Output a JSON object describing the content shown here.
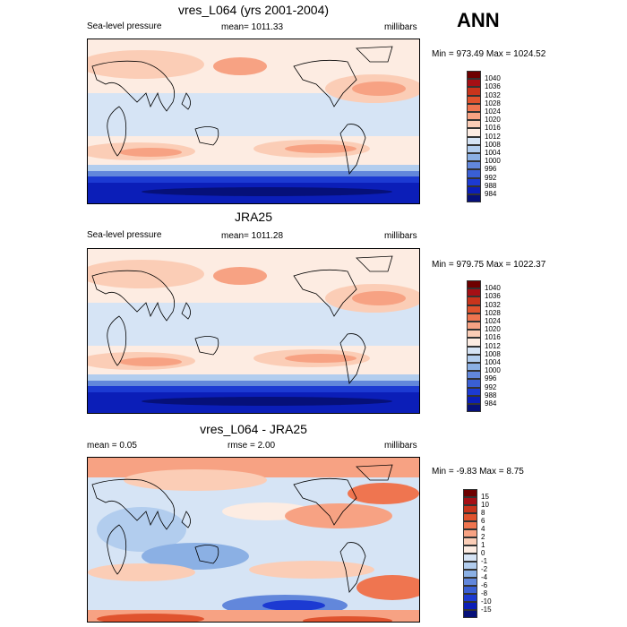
{
  "season": "ANN",
  "colors": {
    "land_outline": "#000000"
  },
  "panels": [
    {
      "id": "model",
      "title": "vres_L064 (yrs 2001-2004)",
      "left_label": "Sea-level pressure",
      "center_label": "mean= 1011.33",
      "right_label": "millibars",
      "minmax": "Min = 973.49 Max = 1024.52",
      "legend": {
        "labels": [
          "1040",
          "1036",
          "1032",
          "1028",
          "1024",
          "1020",
          "1016",
          "1012",
          "1008",
          "1004",
          "1000",
          "996",
          "992",
          "988",
          "984"
        ],
        "colors": [
          "#6e0000",
          "#a50f15",
          "#c8341c",
          "#e0532e",
          "#ef7550",
          "#f7a283",
          "#fbcdb6",
          "#fdece2",
          "#d6e4f5",
          "#b2cdee",
          "#8bb0e4",
          "#6287db",
          "#3a5fd4",
          "#1c3ad2",
          "#0b1eb8",
          "#061079"
        ]
      }
    },
    {
      "id": "obs",
      "title": "JRA25",
      "left_label": "Sea-level pressure",
      "center_label": "mean= 1011.28",
      "right_label": "millibars",
      "minmax": "Min = 979.75 Max = 1022.37",
      "legend": {
        "labels": [
          "1040",
          "1036",
          "1032",
          "1028",
          "1024",
          "1020",
          "1016",
          "1012",
          "1008",
          "1004",
          "1000",
          "996",
          "992",
          "988",
          "984"
        ],
        "colors": [
          "#6e0000",
          "#a50f15",
          "#c8341c",
          "#e0532e",
          "#ef7550",
          "#f7a283",
          "#fbcdb6",
          "#fdece2",
          "#d6e4f5",
          "#b2cdee",
          "#8bb0e4",
          "#6287db",
          "#3a5fd4",
          "#1c3ad2",
          "#0b1eb8",
          "#061079"
        ]
      }
    },
    {
      "id": "diff",
      "title": "vres_L064 - JRA25",
      "left_label": "mean =   0.05",
      "center_label": "rmse =   2.00",
      "right_label": "millibars",
      "minmax": "Min =  -9.83 Max =   8.75",
      "legend": {
        "labels": [
          "15",
          "10",
          "8",
          "6",
          "4",
          "2",
          "1",
          "0",
          "-1",
          "-2",
          "-4",
          "-6",
          "-8",
          "-10",
          "-15"
        ],
        "colors": [
          "#6e0000",
          "#a50f15",
          "#c8341c",
          "#e0532e",
          "#ef7550",
          "#f7a283",
          "#fbcdb6",
          "#fdece2",
          "#d6e4f5",
          "#b2cdee",
          "#8bb0e4",
          "#6287db",
          "#3a5fd4",
          "#1c3ad2",
          "#0b1eb8",
          "#061079"
        ]
      }
    }
  ]
}
